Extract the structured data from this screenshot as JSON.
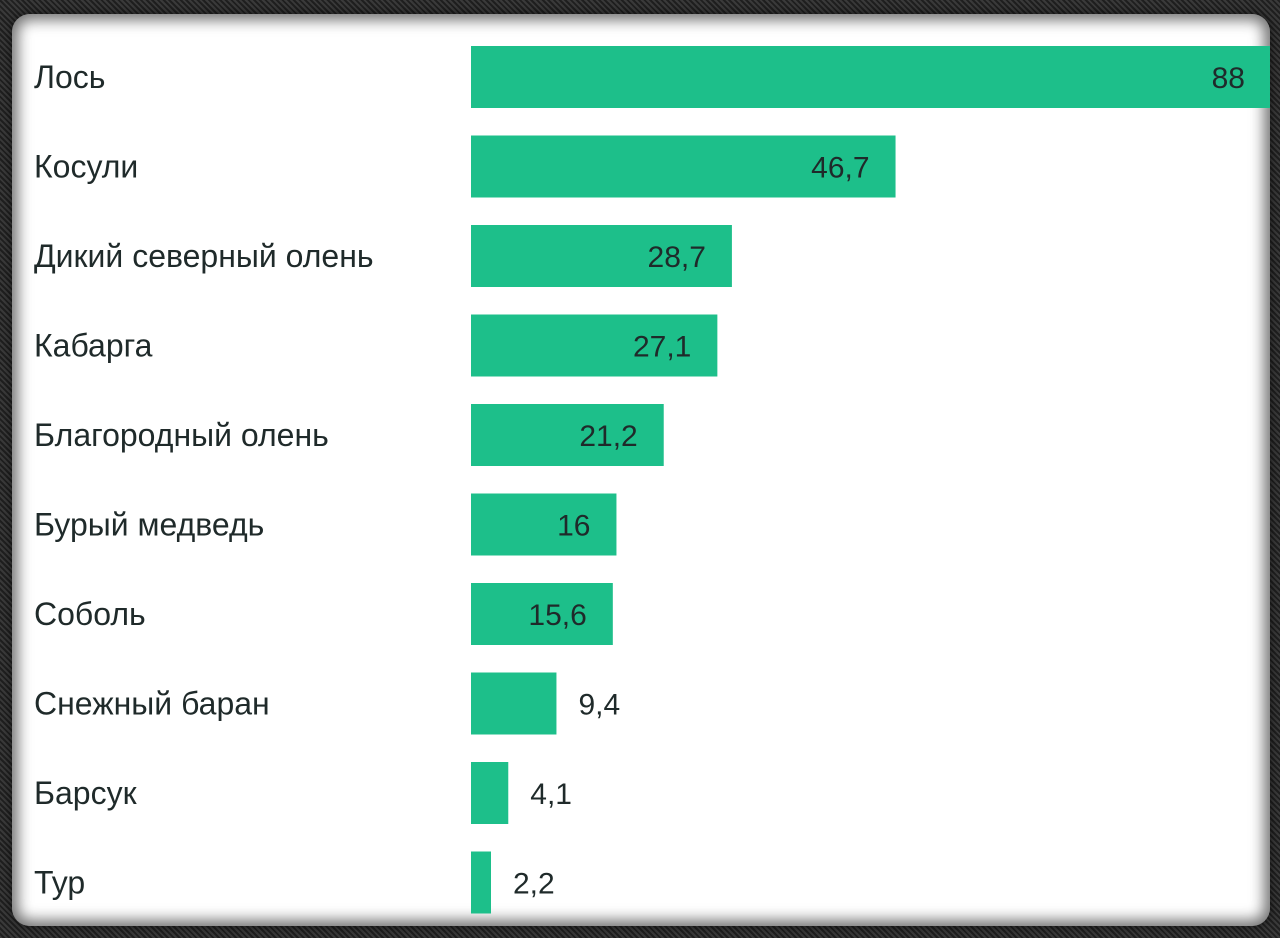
{
  "chart_data": {
    "type": "bar",
    "orientation": "horizontal",
    "categories": [
      "Лось",
      "Косули",
      "Дикий северный олень",
      "Кабарга",
      "Благородный олень",
      "Бурый медведь",
      "Соболь",
      "Снежный баран",
      "Барсук",
      "Тур"
    ],
    "values": [
      88,
      46.7,
      28.7,
      27.1,
      21.2,
      16,
      15.6,
      9.4,
      4.1,
      2.2
    ],
    "value_labels": [
      "88",
      "46,7",
      "28,7",
      "27,1",
      "21,2",
      "16",
      "15,6",
      "9,4",
      "4,1",
      "2,2"
    ],
    "title": "",
    "xlabel": "",
    "ylabel": "",
    "xlim": [
      0,
      88
    ],
    "grid": false,
    "bar_color": "#1dbf8a"
  }
}
